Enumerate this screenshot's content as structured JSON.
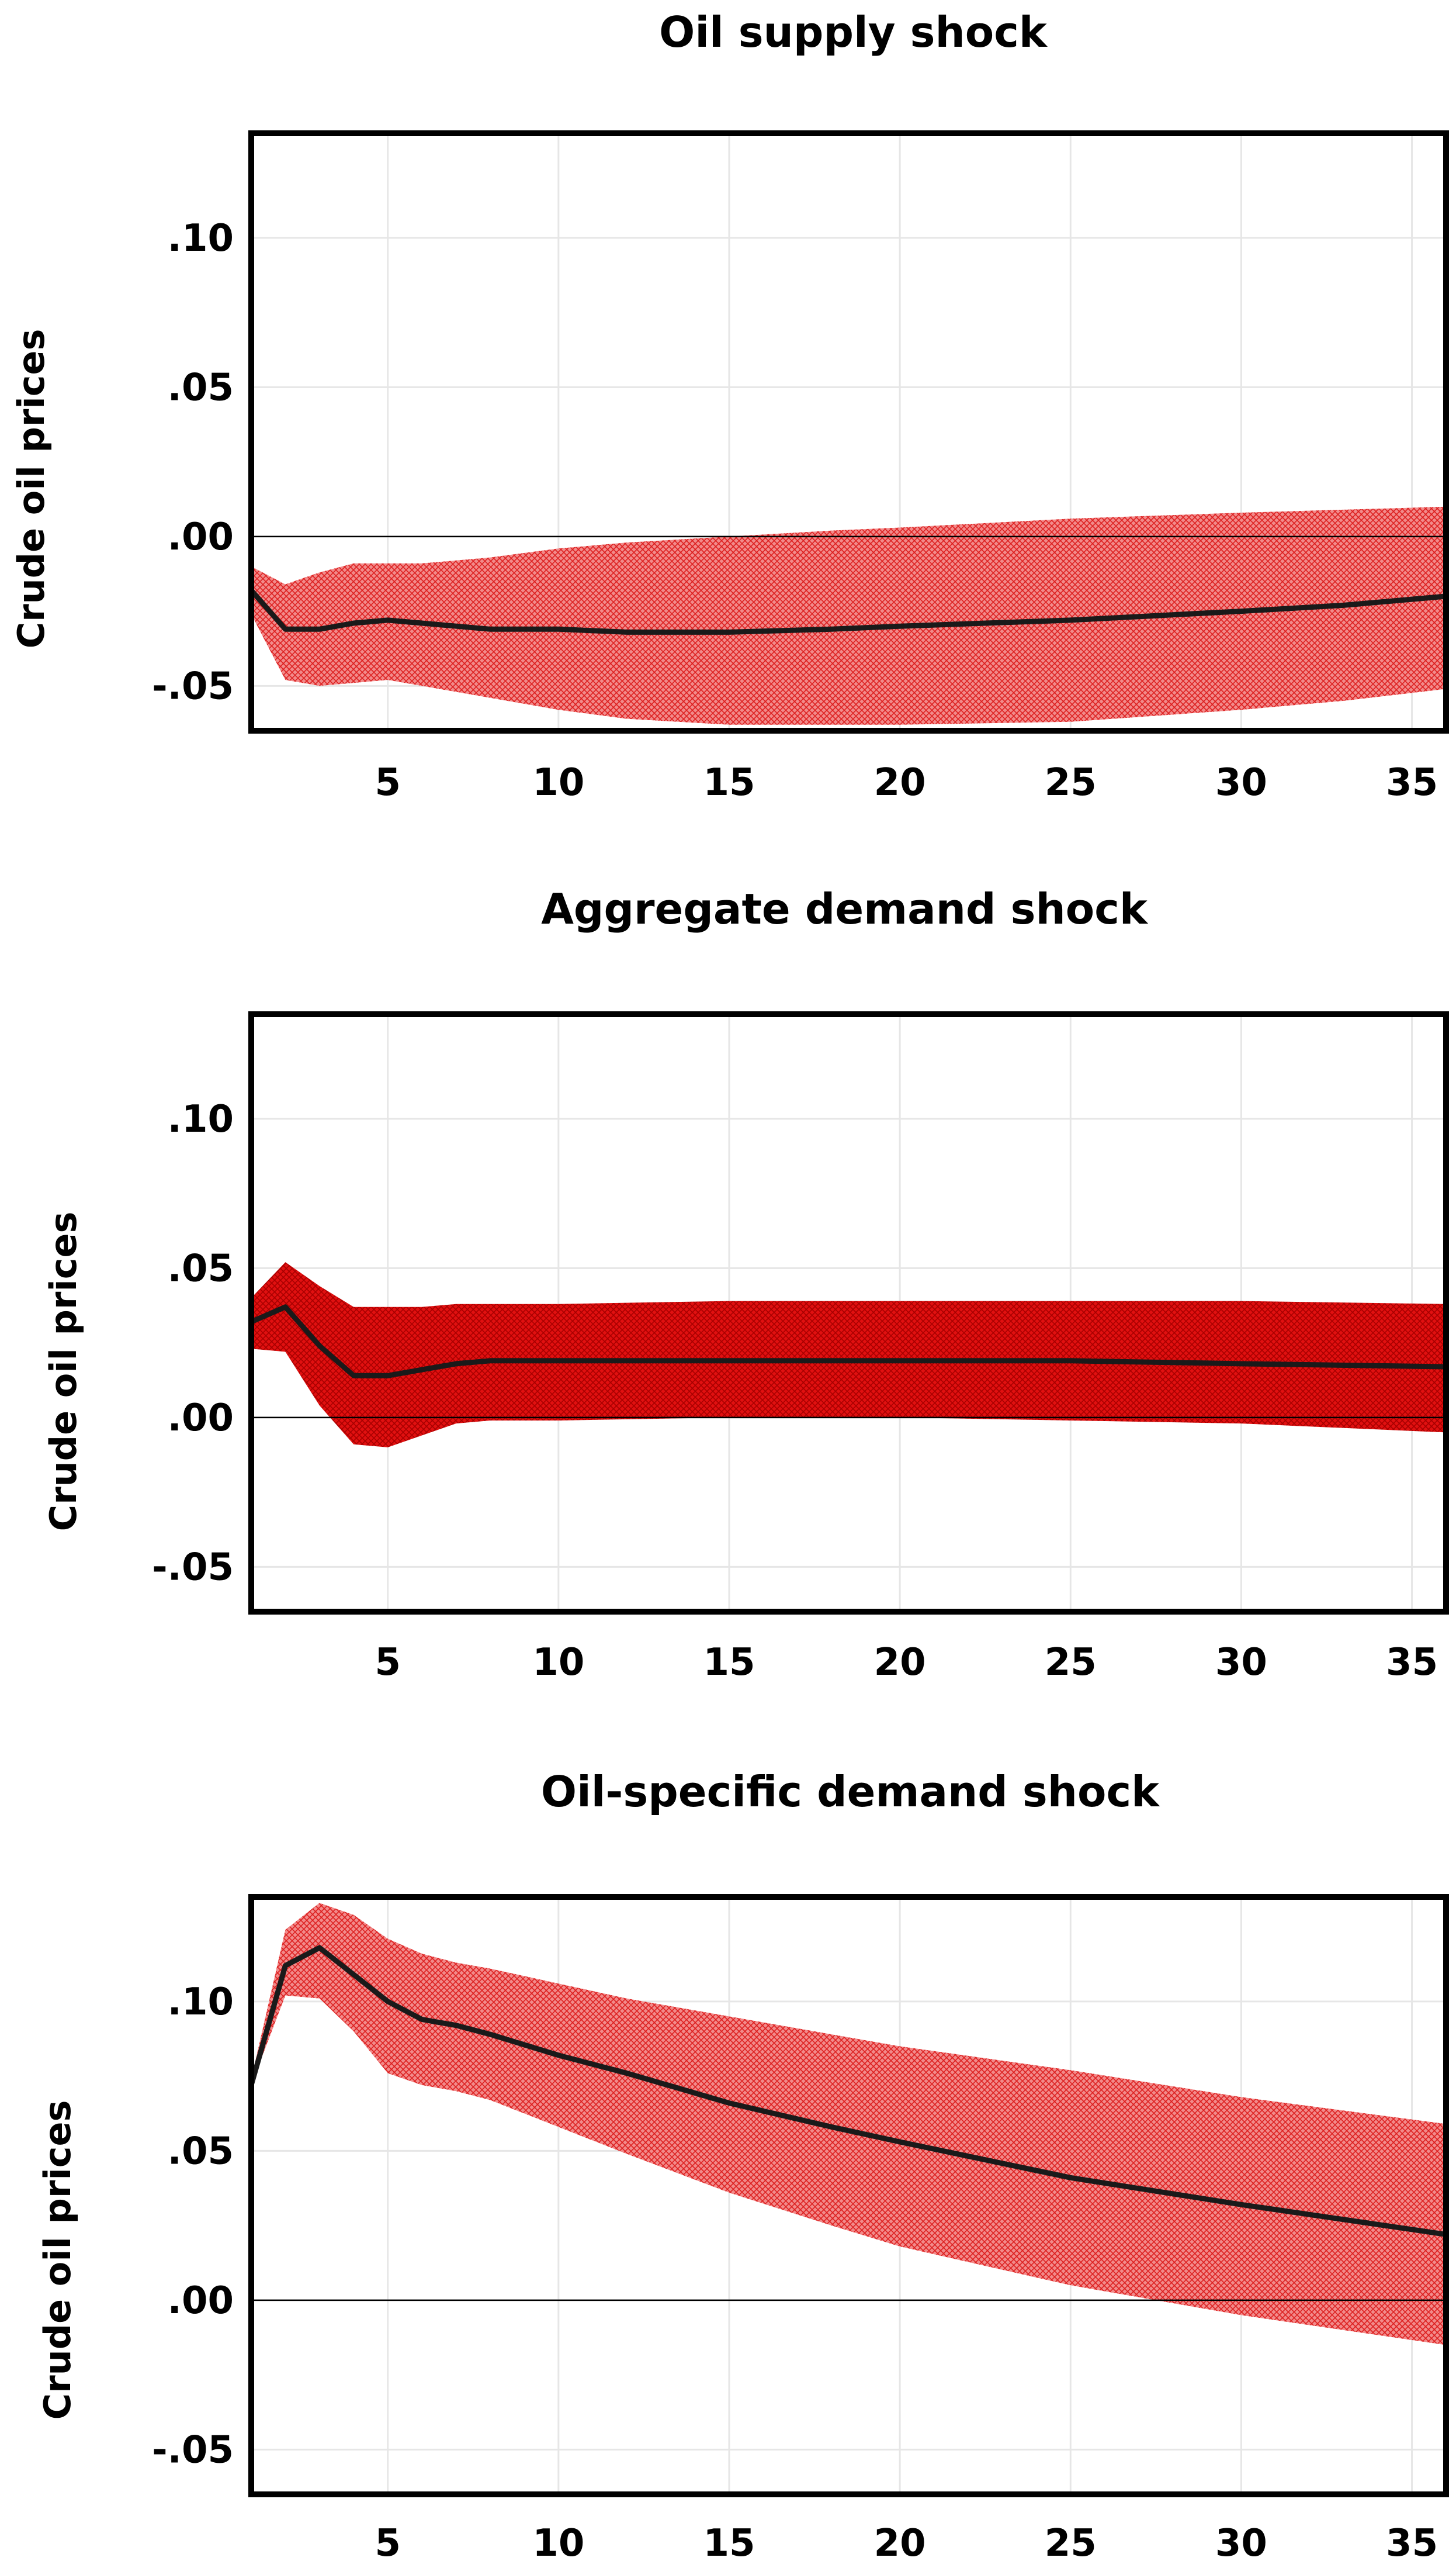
{
  "chart_data": [
    {
      "type": "line",
      "title": "Oil supply shock",
      "xlabel": "",
      "ylabel": "Crude oil prices",
      "xlim": [
        1,
        36
      ],
      "ylim": [
        -0.065,
        0.135
      ],
      "xticks": [
        5,
        10,
        15,
        20,
        25,
        30,
        35
      ],
      "yticks": [
        0.1,
        0.05,
        0.0,
        -0.05
      ],
      "ytick_labels": [
        ".10",
        ".05",
        ".00",
        "-.05"
      ],
      "band_style": "light",
      "series": [
        {
          "name": "Median response",
          "x": [
            1,
            2,
            3,
            4,
            5,
            6,
            8,
            10,
            12,
            15,
            18,
            20,
            25,
            30,
            33,
            36
          ],
          "values": [
            -0.018,
            -0.031,
            -0.031,
            -0.029,
            -0.028,
            -0.029,
            -0.031,
            -0.031,
            -0.032,
            -0.032,
            -0.031,
            -0.03,
            -0.028,
            -0.025,
            -0.023,
            -0.02
          ]
        },
        {
          "name": "Upper bound",
          "x": [
            1,
            2,
            3,
            4,
            5,
            6,
            8,
            10,
            12,
            15,
            18,
            20,
            25,
            30,
            33,
            36
          ],
          "values": [
            -0.01,
            -0.016,
            -0.012,
            -0.009,
            -0.009,
            -0.009,
            -0.007,
            -0.004,
            -0.002,
            0.0,
            0.002,
            0.003,
            0.006,
            0.008,
            0.009,
            0.01
          ]
        },
        {
          "name": "Lower bound",
          "x": [
            1,
            2,
            3,
            4,
            5,
            6,
            8,
            10,
            12,
            15,
            18,
            20,
            25,
            30,
            33,
            36
          ],
          "values": [
            -0.026,
            -0.048,
            -0.05,
            -0.049,
            -0.048,
            -0.05,
            -0.054,
            -0.058,
            -0.061,
            -0.063,
            -0.063,
            -0.063,
            -0.062,
            -0.058,
            -0.055,
            -0.051
          ]
        }
      ]
    },
    {
      "type": "line",
      "title": "Aggregate demand shock",
      "xlabel": "",
      "ylabel": "Crude oil prices",
      "xlim": [
        1,
        36
      ],
      "ylim": [
        -0.065,
        0.135
      ],
      "xticks": [
        5,
        10,
        15,
        20,
        25,
        30,
        35
      ],
      "yticks": [
        0.1,
        0.05,
        0.0,
        -0.05
      ],
      "ytick_labels": [
        ".10",
        ".05",
        ".00",
        "-.05"
      ],
      "band_style": "dense",
      "series": [
        {
          "name": "Median response",
          "x": [
            1,
            2,
            3,
            4,
            5,
            6,
            7,
            8,
            10,
            15,
            20,
            25,
            30,
            36
          ],
          "values": [
            0.032,
            0.037,
            0.024,
            0.014,
            0.014,
            0.016,
            0.018,
            0.019,
            0.019,
            0.019,
            0.019,
            0.019,
            0.018,
            0.017
          ]
        },
        {
          "name": "Upper bound",
          "x": [
            1,
            2,
            3,
            4,
            5,
            6,
            7,
            8,
            10,
            15,
            20,
            25,
            30,
            36
          ],
          "values": [
            0.04,
            0.052,
            0.044,
            0.037,
            0.037,
            0.037,
            0.038,
            0.038,
            0.038,
            0.039,
            0.039,
            0.039,
            0.039,
            0.038
          ]
        },
        {
          "name": "Lower bound",
          "x": [
            1,
            2,
            3,
            4,
            5,
            6,
            7,
            8,
            10,
            15,
            20,
            25,
            30,
            36
          ],
          "values": [
            0.023,
            0.022,
            0.004,
            -0.009,
            -0.01,
            -0.006,
            -0.002,
            -0.001,
            -0.001,
            0.0,
            0.0,
            -0.001,
            -0.002,
            -0.005
          ]
        }
      ]
    },
    {
      "type": "line",
      "title": "Oil-specific demand shock",
      "xlabel": "",
      "ylabel": "Crude oil prices",
      "xlim": [
        1,
        36
      ],
      "ylim": [
        -0.065,
        0.135
      ],
      "xticks": [
        5,
        10,
        15,
        20,
        25,
        30,
        35
      ],
      "yticks": [
        0.1,
        0.05,
        0.0,
        -0.05
      ],
      "ytick_labels": [
        ".10",
        ".05",
        ".00",
        "-.05"
      ],
      "band_style": "light",
      "series": [
        {
          "name": "Median response",
          "x": [
            1,
            2,
            3,
            4,
            5,
            6,
            7,
            8,
            10,
            12,
            15,
            18,
            20,
            25,
            30,
            36
          ],
          "values": [
            0.072,
            0.112,
            0.118,
            0.109,
            0.1,
            0.094,
            0.092,
            0.089,
            0.082,
            0.076,
            0.066,
            0.058,
            0.053,
            0.041,
            0.032,
            0.022
          ]
        },
        {
          "name": "Upper bound",
          "x": [
            1,
            2,
            3,
            4,
            5,
            6,
            7,
            8,
            10,
            12,
            15,
            18,
            20,
            25,
            30,
            36
          ],
          "values": [
            0.074,
            0.124,
            0.133,
            0.129,
            0.121,
            0.116,
            0.113,
            0.111,
            0.106,
            0.101,
            0.095,
            0.089,
            0.085,
            0.077,
            0.068,
            0.059
          ]
        },
        {
          "name": "Lower bound",
          "x": [
            1,
            2,
            3,
            4,
            5,
            6,
            7,
            8,
            10,
            12,
            15,
            18,
            20,
            25,
            30,
            36
          ],
          "values": [
            0.072,
            0.102,
            0.101,
            0.09,
            0.076,
            0.072,
            0.07,
            0.067,
            0.058,
            0.049,
            0.036,
            0.025,
            0.018,
            0.005,
            -0.005,
            -0.015
          ]
        }
      ]
    }
  ]
}
